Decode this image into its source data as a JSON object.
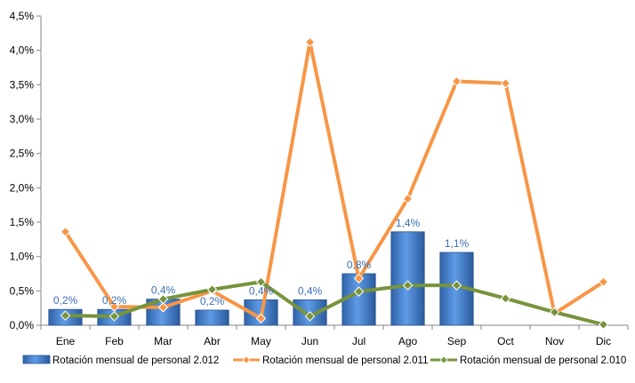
{
  "chart_data": {
    "type": "bar+line",
    "categories": [
      "Ene",
      "Feb",
      "Mar",
      "Abr",
      "May",
      "Jun",
      "Jul",
      "Ago",
      "Sep",
      "Oct",
      "Nov",
      "Dic"
    ],
    "ylim": [
      0,
      4.5
    ],
    "yticks": [
      "0,0%",
      "0,5%",
      "1,0%",
      "1,5%",
      "2,0%",
      "2,5%",
      "3,0%",
      "3,5%",
      "4,0%",
      "4,5%"
    ],
    "grid": false,
    "legend_position": "bottom",
    "series": [
      {
        "name": "Rotación mensual de personal 2.012",
        "type": "bar",
        "color": "#3f7fce",
        "values": [
          0.23,
          0.23,
          0.38,
          0.22,
          0.37,
          0.37,
          0.75,
          1.36,
          1.06,
          null,
          null,
          null
        ],
        "labels": [
          "0,2%",
          "0,2%",
          "0,4%",
          "0,2%",
          "0,4%",
          "0,4%",
          "0,8%",
          "1,4%",
          "1,1%",
          "",
          "",
          ""
        ]
      },
      {
        "name": "Rotación mensual de personal 2.011",
        "type": "line",
        "color": "#f79646",
        "values": [
          1.36,
          0.27,
          0.26,
          0.5,
          0.1,
          4.12,
          0.68,
          1.84,
          3.55,
          3.52,
          0.17,
          0.63
        ]
      },
      {
        "name": "Rotación mensual de personal 2.010",
        "type": "line",
        "color": "#77933c",
        "values": [
          0.14,
          0.13,
          0.38,
          0.52,
          0.63,
          0.13,
          0.49,
          0.58,
          0.58,
          0.39,
          0.19,
          0.01
        ]
      }
    ]
  }
}
